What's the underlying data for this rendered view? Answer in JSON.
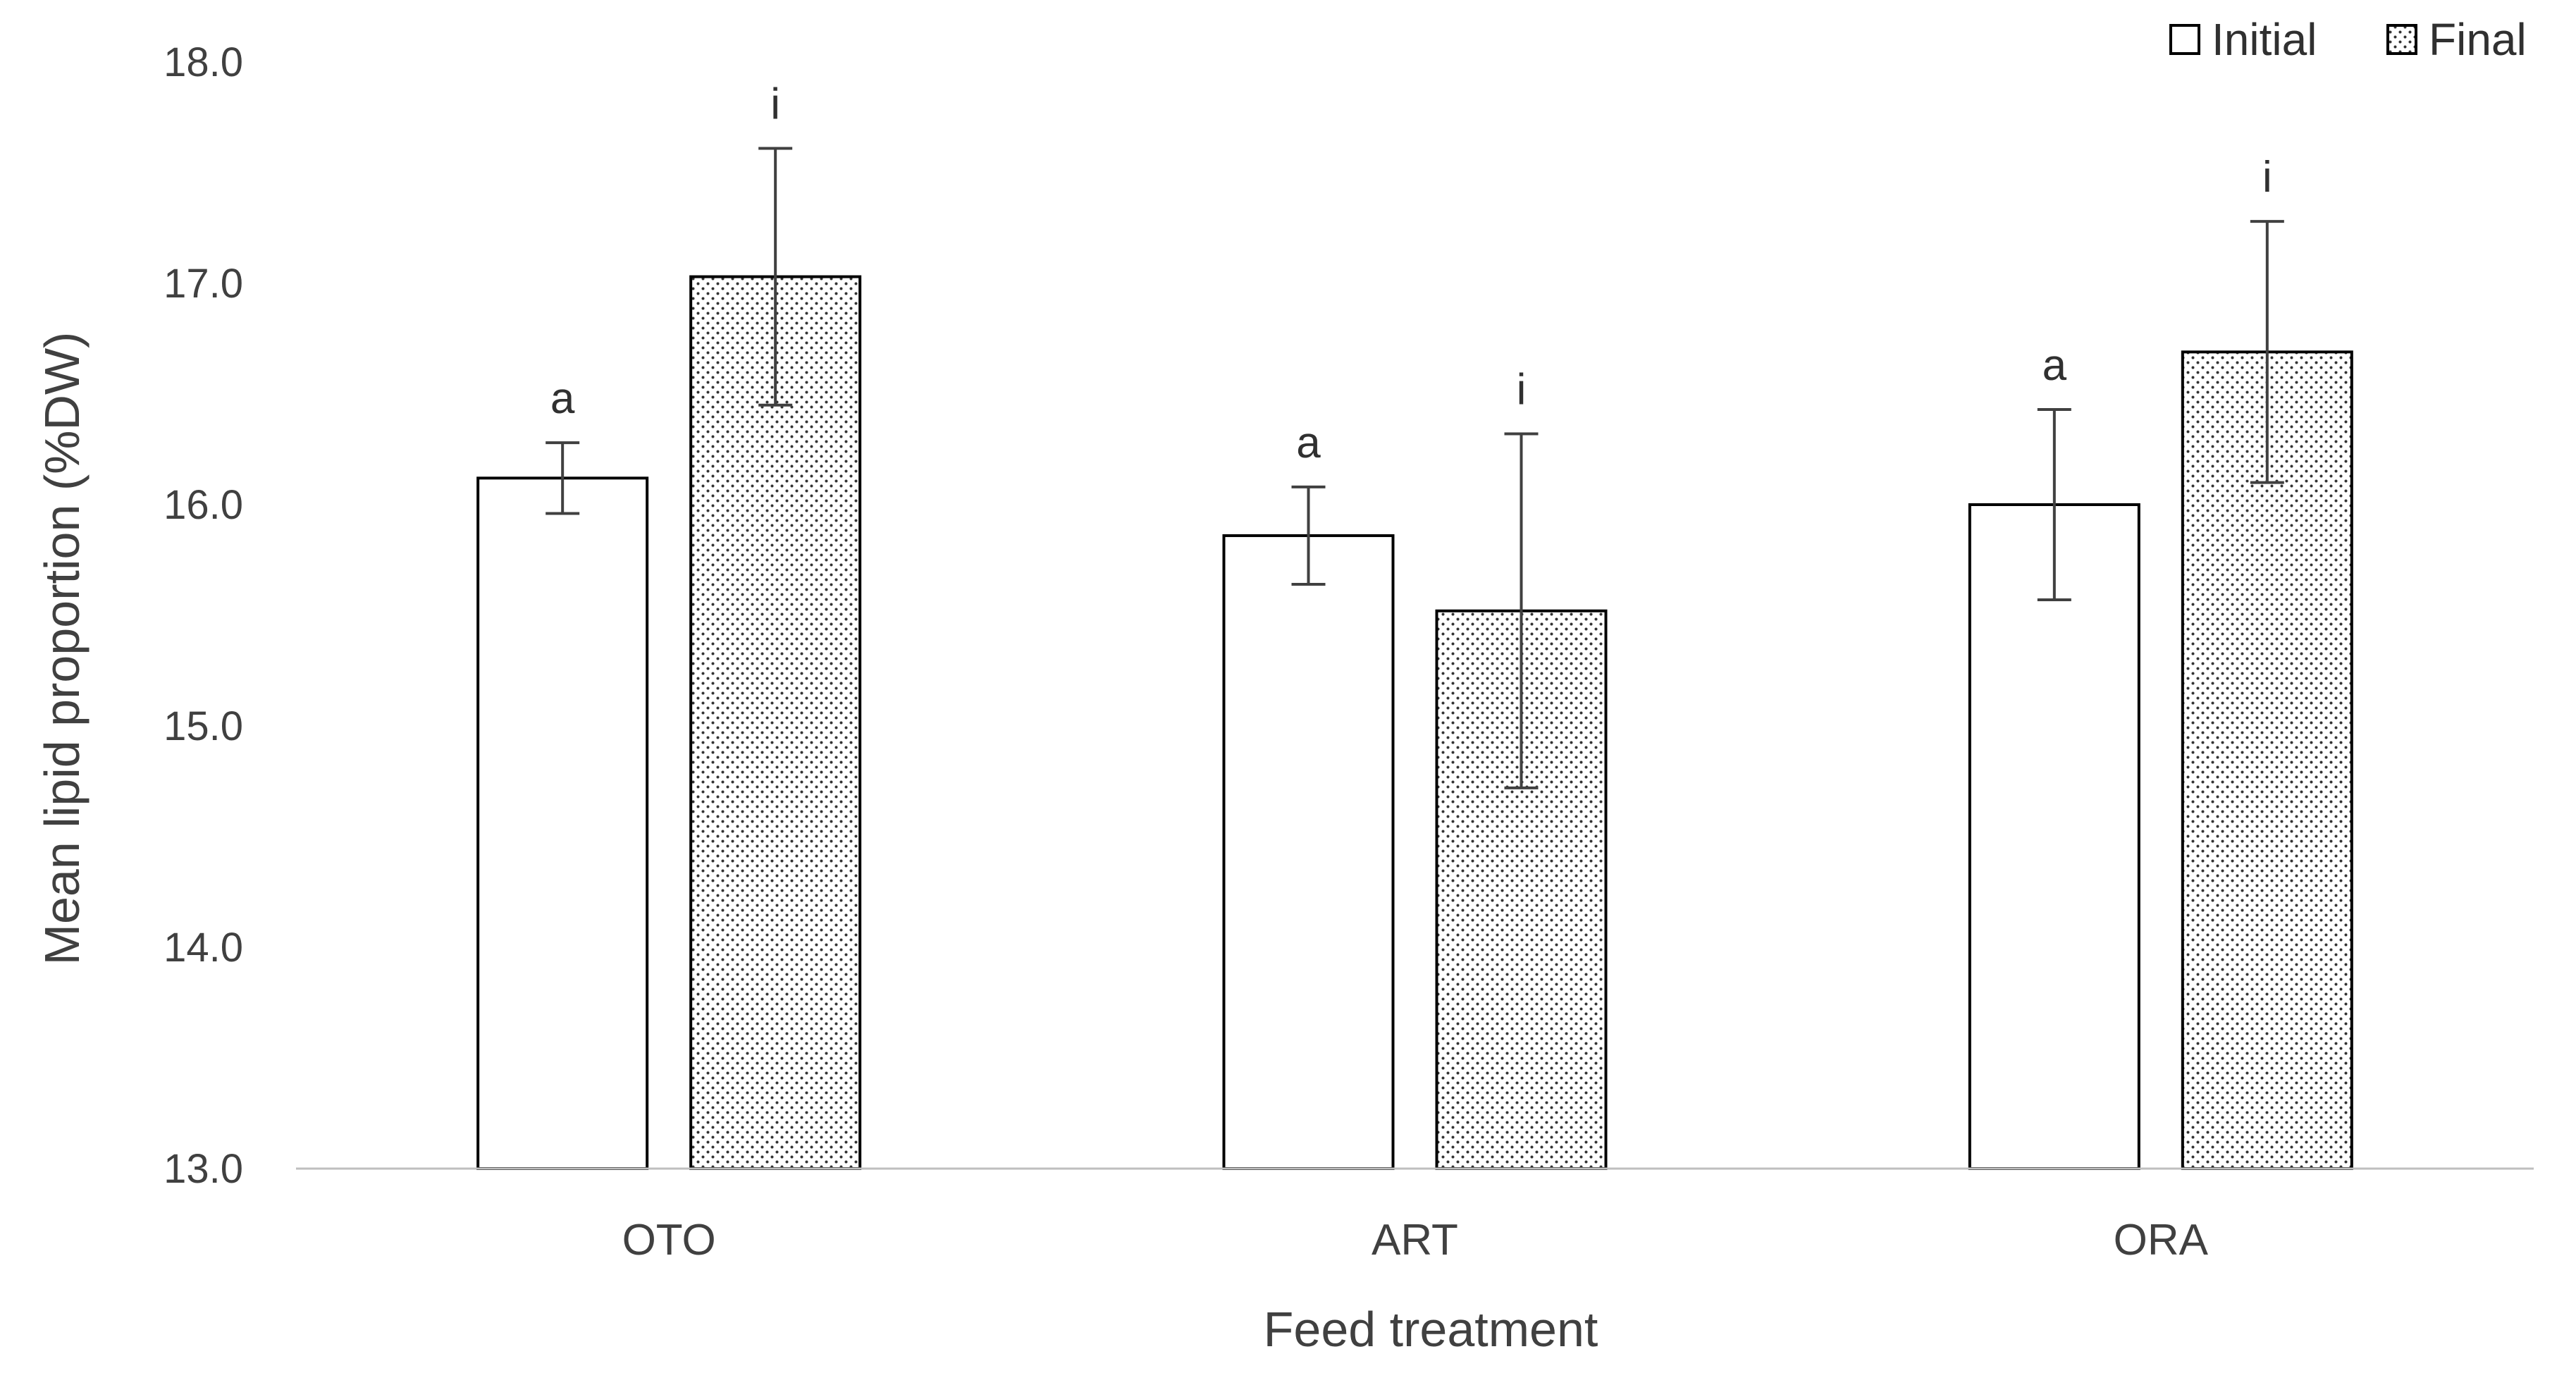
{
  "chart_data": {
    "type": "bar",
    "title": "",
    "xlabel": "Feed treatment",
    "ylabel": "Mean lipid proportion (%DW)",
    "ylim": [
      13.0,
      18.0
    ],
    "yticks": [
      "13.0",
      "14.0",
      "15.0",
      "16.0",
      "17.0",
      "18.0"
    ],
    "categories": [
      "OTO",
      "ART",
      "ORA"
    ],
    "legend_position": "top-right",
    "series": [
      {
        "name": "Initial",
        "pattern": "none",
        "values": [
          16.12,
          15.86,
          16.0
        ],
        "error": [
          0.16,
          0.22,
          0.43
        ],
        "labels": [
          "a",
          "a",
          "a"
        ]
      },
      {
        "name": "Final",
        "pattern": "dotted",
        "values": [
          17.03,
          15.52,
          16.69
        ],
        "error": [
          0.58,
          0.8,
          0.59
        ],
        "labels": [
          "i",
          "i",
          "i"
        ]
      }
    ],
    "colors": {
      "bar_stroke": "#000000",
      "bar_fill": "#ffffff",
      "dot": "#333333",
      "axis": "#bfbfbf",
      "text": "#404040"
    }
  }
}
